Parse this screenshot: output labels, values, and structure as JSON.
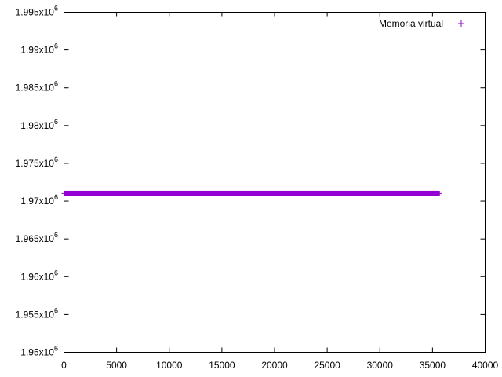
{
  "chart_data": {
    "type": "scatter",
    "title": "",
    "xlabel": "",
    "ylabel": "",
    "xlim": [
      0,
      40000
    ],
    "ylim": [
      1950000,
      1995000
    ],
    "x_ticks": [
      0,
      5000,
      10000,
      15000,
      20000,
      25000,
      30000,
      35000,
      40000
    ],
    "x_tick_labels": [
      "0",
      "5000",
      "10000",
      "15000",
      "20000",
      "25000",
      "30000",
      "35000",
      "40000"
    ],
    "y_ticks": [
      1950000,
      1955000,
      1960000,
      1965000,
      1970000,
      1975000,
      1980000,
      1985000,
      1990000,
      1995000
    ],
    "y_tick_labels": [
      {
        "mantissa": "1.95x10",
        "exp": "6"
      },
      {
        "mantissa": "1.955x10",
        "exp": "6"
      },
      {
        "mantissa": "1.96x10",
        "exp": "6"
      },
      {
        "mantissa": "1.965x10",
        "exp": "6"
      },
      {
        "mantissa": "1.97x10",
        "exp": "6"
      },
      {
        "mantissa": "1.975x10",
        "exp": "6"
      },
      {
        "mantissa": "1.98x10",
        "exp": "6"
      },
      {
        "mantissa": "1.985x10",
        "exp": "6"
      },
      {
        "mantissa": "1.99x10",
        "exp": "6"
      },
      {
        "mantissa": "1.995x10",
        "exp": "6"
      }
    ],
    "grid": false,
    "legend_position": "top-right",
    "series": [
      {
        "name": "Memoria virtual",
        "color": "#9400d3",
        "marker": "plus",
        "x_start": 0,
        "x_end": 35700,
        "y": 1971000
      }
    ]
  }
}
